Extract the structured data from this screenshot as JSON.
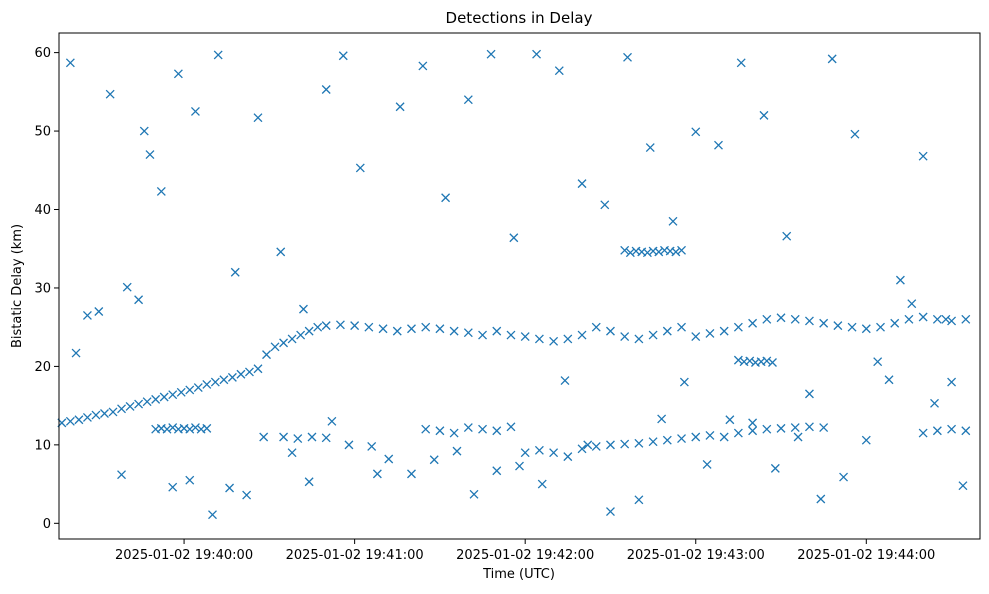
{
  "chart_data": {
    "type": "scatter",
    "title": "Detections in Delay",
    "xlabel": "Time (UTC)",
    "ylabel": "Bistatic Delay (km)",
    "marker": "x",
    "color": "#1f77b4",
    "grid": false,
    "x_tick_labels": [
      "2025-01-02 19:40:00",
      "2025-01-02 19:41:00",
      "2025-01-02 19:42:00",
      "2025-01-02 19:43:00",
      "2025-01-02 19:44:00"
    ],
    "x_ticks": [
      "19:40:00",
      "19:41:00",
      "19:42:00",
      "19:43:00",
      "19:44:00"
    ],
    "xlim": [
      "19:39:16",
      "19:44:40"
    ],
    "y_ticks": [
      0,
      10,
      20,
      30,
      40,
      50,
      60
    ],
    "ylim": [
      -2,
      62.5
    ],
    "series": [
      {
        "x": [
          "19:39:17",
          "19:39:20",
          "19:39:23",
          "19:39:26",
          "19:39:29",
          "19:39:32",
          "19:39:35",
          "19:39:38",
          "19:39:41",
          "19:39:44",
          "19:39:47",
          "19:39:50",
          "19:39:53",
          "19:39:56",
          "19:39:59",
          "19:40:02",
          "19:40:05",
          "19:40:08",
          "19:40:11",
          "19:40:14",
          "19:40:17",
          "19:40:20",
          "19:40:23",
          "19:40:26",
          "19:40:29",
          "19:40:32",
          "19:40:35",
          "19:40:38",
          "19:40:41",
          "19:40:44",
          "19:40:47",
          "19:40:50"
        ],
        "y": [
          12.8,
          13.0,
          13.2,
          13.5,
          13.8,
          14.0,
          14.2,
          14.6,
          14.9,
          15.2,
          15.5,
          15.8,
          16.1,
          16.4,
          16.7,
          17.0,
          17.3,
          17.7,
          18.0,
          18.3,
          18.6,
          19.0,
          19.3,
          19.7,
          21.5,
          22.5,
          23.0,
          23.5,
          24.0,
          24.5,
          25.0,
          25.2
        ]
      },
      {
        "x": [
          "19:40:55",
          "19:41:00",
          "19:41:05",
          "19:41:10",
          "19:41:15",
          "19:41:20",
          "19:41:25",
          "19:41:30",
          "19:41:35",
          "19:41:40",
          "19:41:45",
          "19:41:50",
          "19:41:55",
          "19:42:00",
          "19:42:05",
          "19:42:10",
          "19:42:15",
          "19:42:20",
          "19:42:25",
          "19:42:30",
          "19:42:35",
          "19:42:40",
          "19:42:45",
          "19:42:50",
          "19:42:55",
          "19:43:00",
          "19:43:05",
          "19:43:10",
          "19:43:15",
          "19:43:20",
          "19:43:25",
          "19:43:30",
          "19:43:35",
          "19:43:40",
          "19:43:45",
          "19:43:50",
          "19:43:55",
          "19:44:00",
          "19:44:05",
          "19:44:10",
          "19:44:15",
          "19:44:20",
          "19:44:25",
          "19:44:30",
          "19:44:35"
        ],
        "y": [
          25.3,
          25.2,
          25.0,
          24.8,
          24.5,
          24.8,
          25.0,
          24.8,
          24.5,
          24.3,
          24.0,
          24.5,
          24.0,
          23.8,
          23.5,
          23.2,
          23.5,
          24.0,
          25.0,
          24.5,
          23.8,
          23.5,
          24.0,
          24.5,
          25.0,
          23.8,
          24.2,
          24.5,
          25.0,
          25.5,
          26.0,
          26.2,
          26.0,
          25.8,
          25.5,
          25.2,
          25.0,
          24.8,
          25.0,
          25.5,
          26.0,
          26.3,
          26.0,
          25.8,
          26.0
        ]
      },
      {
        "x": [
          "19:39:50",
          "19:39:52",
          "19:39:54",
          "19:39:56",
          "19:39:58",
          "19:40:00",
          "19:40:02",
          "19:40:04",
          "19:40:06",
          "19:40:08",
          "19:40:35",
          "19:40:40",
          "19:40:45",
          "19:40:50",
          "19:41:25",
          "19:41:30",
          "19:41:35",
          "19:41:40",
          "19:41:45",
          "19:41:50",
          "19:41:55",
          "19:42:00",
          "19:42:05",
          "19:42:10",
          "19:42:15",
          "19:42:20",
          "19:42:25",
          "19:42:30",
          "19:42:35",
          "19:42:40",
          "19:42:45",
          "19:42:50",
          "19:42:55",
          "19:43:00",
          "19:43:05",
          "19:43:10",
          "19:43:15",
          "19:43:20",
          "19:43:25",
          "19:43:30",
          "19:43:35",
          "19:43:40",
          "19:43:45",
          "19:44:20",
          "19:44:25",
          "19:44:30",
          "19:44:35"
        ],
        "y": [
          12.0,
          12.1,
          12.0,
          12.2,
          12.0,
          12.1,
          12.0,
          12.2,
          12.0,
          12.1,
          11.0,
          10.8,
          11.0,
          10.9,
          12.0,
          11.8,
          11.5,
          12.2,
          12.0,
          11.8,
          12.3,
          9.0,
          9.3,
          9.0,
          8.5,
          9.5,
          9.8,
          10.0,
          10.1,
          10.2,
          10.4,
          10.6,
          10.8,
          11.0,
          11.2,
          11.0,
          11.5,
          11.8,
          12.0,
          12.1,
          12.2,
          12.3,
          12.2,
          11.5,
          11.8,
          12.0,
          11.8
        ]
      },
      {
        "x": [
          "19:42:35",
          "19:42:37",
          "19:42:39",
          "19:42:41",
          "19:42:43",
          "19:42:45",
          "19:42:47",
          "19:42:49",
          "19:42:51",
          "19:42:53",
          "19:42:55",
          "19:43:15",
          "19:43:17",
          "19:43:19",
          "19:43:21",
          "19:43:23",
          "19:43:25",
          "19:43:27"
        ],
        "y": [
          34.8,
          34.5,
          34.7,
          34.6,
          34.5,
          34.7,
          34.6,
          34.8,
          34.7,
          34.6,
          34.8,
          20.8,
          20.6,
          20.7,
          20.5,
          20.6,
          20.7,
          20.5
        ]
      },
      {
        "x": [
          "19:39:20",
          "19:39:26",
          "19:39:34",
          "19:39:40",
          "19:39:46",
          "19:39:52",
          "19:39:58",
          "19:40:04",
          "19:40:12",
          "19:40:18",
          "19:40:26",
          "19:40:34",
          "19:40:42",
          "19:40:50",
          "19:40:56",
          "19:41:02",
          "19:41:08",
          "19:41:16",
          "19:41:24",
          "19:41:32",
          "19:41:40",
          "19:41:48",
          "19:41:56",
          "19:42:04",
          "19:42:12",
          "19:42:20",
          "19:42:28",
          "19:42:36",
          "19:42:44",
          "19:42:52",
          "19:43:00",
          "19:43:08",
          "19:43:16",
          "19:43:24",
          "19:43:32",
          "19:43:40",
          "19:43:48",
          "19:43:56",
          "19:44:04",
          "19:44:12",
          "19:44:20",
          "19:44:28",
          "19:44:34"
        ],
        "y": [
          58.7,
          26.5,
          54.7,
          30.1,
          50.0,
          42.3,
          57.3,
          52.5,
          59.7,
          32.0,
          51.7,
          34.6,
          27.3,
          55.3,
          59.6,
          45.3,
          6.3,
          53.1,
          58.3,
          41.5,
          54.0,
          59.8,
          36.4,
          59.8,
          57.7,
          43.3,
          40.6,
          59.4,
          47.9,
          38.5,
          49.9,
          48.2,
          58.7,
          52.0,
          36.6,
          16.5,
          59.2,
          49.6,
          20.6,
          31.0,
          46.8,
          26.0,
          4.8
        ]
      },
      {
        "x": [
          "19:39:22",
          "19:39:30",
          "19:39:38",
          "19:39:44",
          "19:39:48",
          "19:39:56",
          "19:40:02",
          "19:40:10",
          "19:40:16",
          "19:40:22",
          "19:40:28",
          "19:40:38",
          "19:40:44",
          "19:40:52",
          "19:40:58",
          "19:41:06",
          "19:41:12",
          "19:41:20",
          "19:41:28",
          "19:41:36",
          "19:41:42",
          "19:41:50",
          "19:41:58",
          "19:42:06",
          "19:42:14",
          "19:42:22",
          "19:42:30",
          "19:42:40",
          "19:42:48",
          "19:42:56",
          "19:43:04",
          "19:43:12",
          "19:43:20",
          "19:43:28",
          "19:43:36",
          "19:43:44",
          "19:43:52",
          "19:44:00",
          "19:44:08",
          "19:44:16",
          "19:44:24",
          "19:44:30"
        ],
        "y": [
          21.7,
          27.0,
          6.2,
          28.5,
          47.0,
          4.6,
          5.5,
          1.1,
          4.5,
          3.6,
          11.0,
          9.0,
          5.3,
          13.0,
          10.0,
          9.8,
          8.2,
          6.3,
          8.1,
          9.2,
          3.7,
          6.7,
          7.3,
          5.0,
          18.2,
          10.0,
          1.5,
          3.0,
          13.3,
          18.0,
          7.5,
          13.2,
          12.8,
          7.0,
          11.0,
          3.1,
          5.9,
          10.6,
          18.3,
          28.0,
          15.3,
          18.0
        ]
      }
    ]
  }
}
